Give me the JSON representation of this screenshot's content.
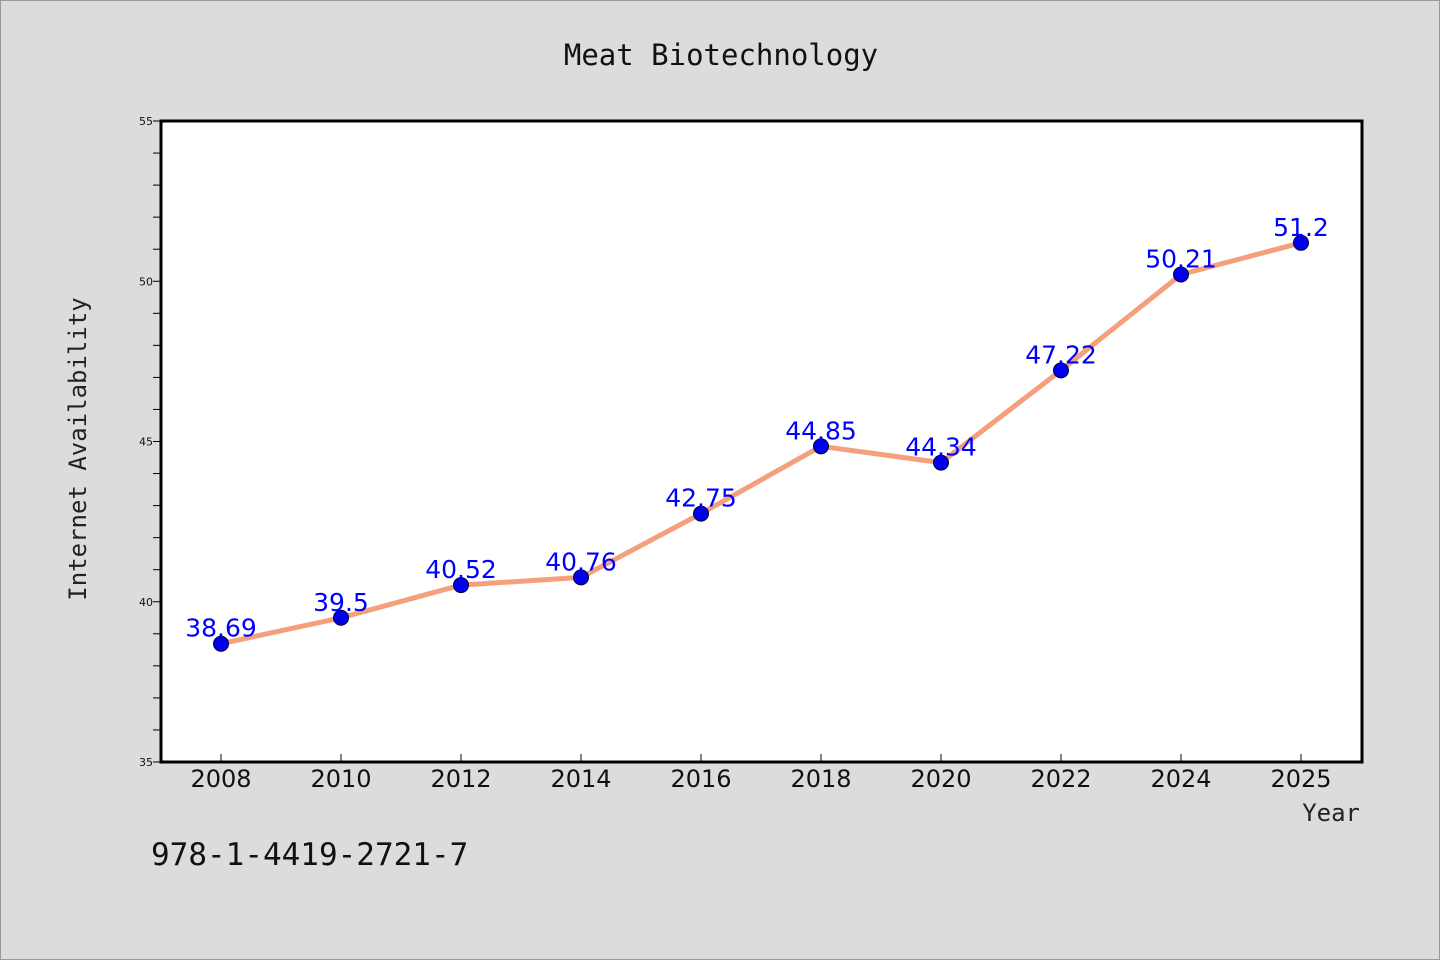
{
  "footer_text": "978-1-4419-2721-7",
  "colors": {
    "background": "#dcdcdc",
    "plot_background": "#ffffff",
    "line": "#f4a07c",
    "marker": "#0000ee",
    "data_label": "#0000ff"
  },
  "chart_data": {
    "type": "line",
    "title": "Meat Biotechnology",
    "xlabel": "Year",
    "ylabel": "Internet Availability",
    "ylim": [
      35,
      55
    ],
    "y_ticks": [
      "35",
      "40",
      "45",
      "50",
      "55"
    ],
    "categories": [
      "2008",
      "2010",
      "2012",
      "2014",
      "2016",
      "2018",
      "2020",
      "2022",
      "2024",
      "2025"
    ],
    "values": [
      38.69,
      39.5,
      40.52,
      40.76,
      42.75,
      44.85,
      44.34,
      47.22,
      50.21,
      51.2
    ],
    "value_labels": [
      "38.69",
      "39.5",
      "40.52",
      "40.76",
      "42.75",
      "44.85",
      "44.34",
      "47.22",
      "50.21",
      "51.2"
    ],
    "grid": false,
    "legend": "none"
  }
}
